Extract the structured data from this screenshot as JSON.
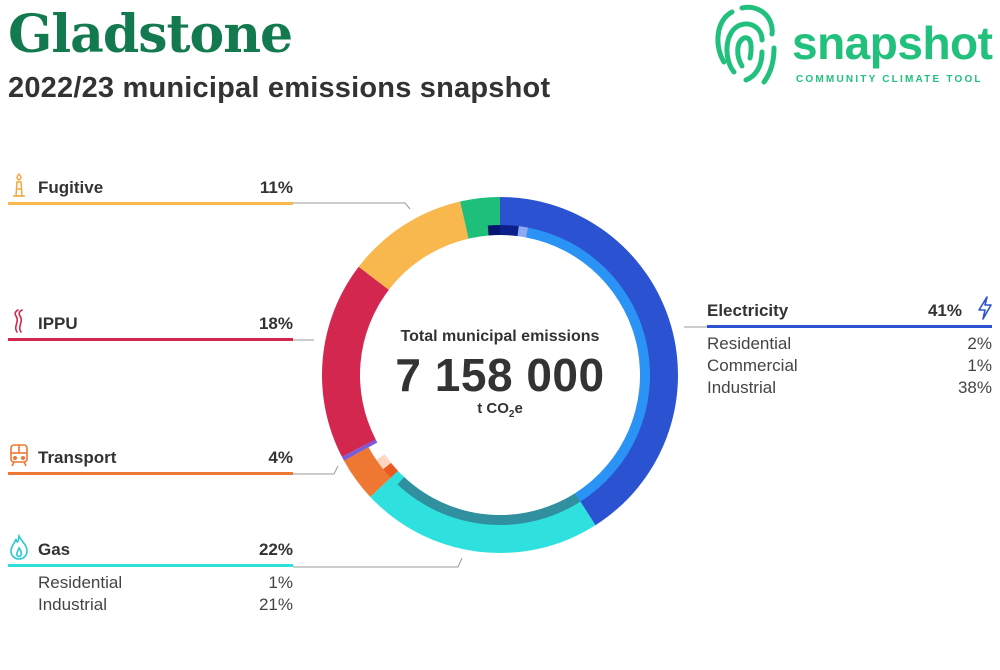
{
  "title": "Gladstone",
  "subtitle": "2022/23 municipal emissions snapshot",
  "logo": {
    "word": "snapshot",
    "tagline": "COMMUNITY CLIMATE TOOL",
    "color": "#22c07d"
  },
  "center": {
    "label": "Total municipal emissions",
    "value": "7 158 000",
    "unit_prefix": "t CO",
    "unit_sub": "2",
    "unit_suffix": "e"
  },
  "categories": {
    "fugitive": {
      "name": "Fugitive",
      "pct": "11%",
      "color": "#f8b84e",
      "icon": "gas-flare-icon"
    },
    "ippu": {
      "name": "IPPU",
      "pct": "18%",
      "color": "#d4274f",
      "icon": "smoke-stack-icon"
    },
    "transport": {
      "name": "Transport",
      "pct": "4%",
      "color": "#ee7731",
      "icon": "train-icon"
    },
    "gas": {
      "name": "Gas",
      "pct": "22%",
      "color": "#2ee1df",
      "icon": "flame-icon",
      "subs": [
        {
          "name": "Residential",
          "pct": "1%"
        },
        {
          "name": "Industrial",
          "pct": "21%"
        }
      ]
    },
    "electricity": {
      "name": "Electricity",
      "pct": "41%",
      "color": "#2a52d1",
      "icon": "lightning-icon",
      "subs": [
        {
          "name": "Residential",
          "pct": "2%"
        },
        {
          "name": "Commercial",
          "pct": "1%"
        },
        {
          "name": "Industrial",
          "pct": "38%"
        }
      ]
    }
  },
  "chart_data": {
    "type": "pie",
    "total": 7158000,
    "unit": "t CO2e",
    "outer_ring": [
      {
        "name": "Electricity",
        "value": 41,
        "color": "#2a52d1"
      },
      {
        "name": "Gas",
        "value": 22,
        "color": "#2ee1df"
      },
      {
        "name": "Transport",
        "value": 4,
        "color": "#ee7731"
      },
      {
        "name": "",
        "value": 0.4,
        "color": "#7b5bd6"
      },
      {
        "name": "IPPU",
        "value": 18,
        "color": "#d4274f"
      },
      {
        "name": "Fugitive",
        "value": 11,
        "color": "#f8b84e"
      },
      {
        "name": "",
        "value": 3.6,
        "color": "#1dbf7b"
      }
    ],
    "inner_ring": [
      {
        "name": "Residential",
        "value": 2,
        "color": "#0c1f8a"
      },
      {
        "name": "Commercial",
        "value": 1,
        "color": "#8fa8f2"
      },
      {
        "name": "Industrial",
        "value": 38,
        "color": "#2b93f5"
      },
      {
        "name": "Industrial",
        "value": 21,
        "color": "#31909f"
      },
      {
        "name": "Residential",
        "value": 1,
        "color": "#2ee1df"
      },
      {
        "name": "",
        "value": 1.2,
        "color": "#ea5a1f"
      },
      {
        "name": "",
        "value": 1.2,
        "color": "#ffd5c0"
      },
      {
        "name": "",
        "value": 1.6,
        "color": "#ffffff"
      },
      {
        "name": "",
        "value": 0.4,
        "color": "#7b5bd6"
      },
      {
        "name": "",
        "value": 18,
        "color": "#d4274f"
      },
      {
        "name": "",
        "value": 11,
        "color": "#f8b84e"
      },
      {
        "name": "",
        "value": 2.3,
        "color": "#1dbf7b"
      },
      {
        "name": "",
        "value": 1.3,
        "color": "#05166e"
      }
    ]
  }
}
